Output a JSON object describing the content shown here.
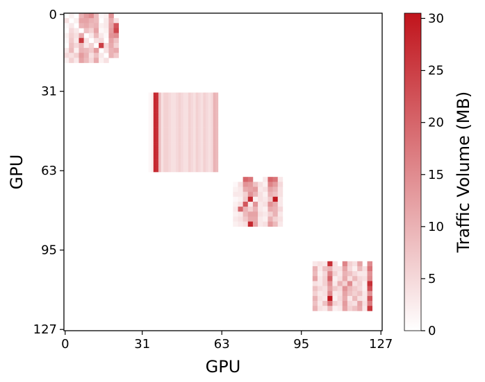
{
  "chart_data": {
    "type": "heatmap",
    "title": "",
    "xlabel": "GPU",
    "ylabel": "GPU",
    "x_ticks": [
      0,
      31,
      63,
      95,
      127
    ],
    "y_ticks": [
      0,
      31,
      63,
      95,
      127
    ],
    "x_range": [
      0,
      127
    ],
    "y_range": [
      0,
      127
    ],
    "colorbar": {
      "label": "Traffic Volume (MB)",
      "range": [
        0,
        30.5
      ],
      "ticks": [
        0,
        5,
        10,
        15,
        20,
        25,
        30
      ],
      "color_low": "#ffffff",
      "color_high": "#c0141c"
    },
    "grid": false,
    "background_value": 0,
    "blocks": [
      {
        "rows": [
          0,
          31
        ],
        "cols": [
          0,
          31
        ],
        "cell_size": 2,
        "pattern": "mixed",
        "values": [
          [
            0,
            2,
            0,
            10,
            13,
            15,
            9,
            1,
            2,
            14,
            0,
            0,
            0,
            0,
            0,
            0
          ],
          [
            4,
            0,
            2,
            12,
            12,
            10,
            9,
            0,
            3,
            11,
            4,
            0,
            0,
            0,
            0,
            0
          ],
          [
            1,
            3,
            0,
            10,
            11,
            9,
            10,
            2,
            3,
            12,
            22,
            0,
            0,
            0,
            0,
            0
          ],
          [
            0,
            5,
            3,
            0,
            8,
            6,
            12,
            1,
            2,
            13,
            24,
            0,
            0,
            0,
            0,
            0
          ],
          [
            2,
            6,
            4,
            11,
            0,
            3,
            9,
            3,
            1,
            14,
            15,
            0,
            0,
            0,
            0,
            0
          ],
          [
            1,
            7,
            3,
            26,
            4,
            0,
            4,
            5,
            0,
            12,
            8,
            0,
            0,
            0,
            0,
            0
          ],
          [
            0,
            8,
            5,
            9,
            3,
            6,
            0,
            25,
            5,
            11,
            6,
            0,
            0,
            0,
            0,
            0
          ],
          [
            3,
            9,
            2,
            10,
            9,
            7,
            13,
            0,
            4,
            10,
            11,
            0,
            0,
            0,
            0,
            0
          ],
          [
            5,
            4,
            6,
            13,
            10,
            4,
            8,
            3,
            0,
            10,
            7,
            0,
            0,
            0,
            0,
            0
          ],
          [
            2,
            6,
            3,
            12,
            9,
            5,
            11,
            2,
            4,
            0,
            0,
            0,
            0,
            0,
            0,
            0
          ],
          [
            0,
            0,
            0,
            0,
            0,
            0,
            0,
            0,
            0,
            0,
            0,
            0,
            0,
            0,
            0,
            0
          ],
          [
            0,
            0,
            0,
            0,
            0,
            0,
            0,
            0,
            0,
            0,
            0,
            0,
            0,
            0,
            0,
            0
          ],
          [
            0,
            0,
            0,
            0,
            0,
            0,
            0,
            0,
            0,
            0,
            0,
            0,
            0,
            0,
            0,
            0
          ],
          [
            0,
            0,
            0,
            0,
            0,
            0,
            0,
            0,
            0,
            0,
            0,
            0,
            0,
            0,
            0,
            0
          ],
          [
            0,
            0,
            0,
            0,
            0,
            0,
            0,
            0,
            0,
            0,
            0,
            0,
            0,
            0,
            0,
            0
          ],
          [
            0,
            0,
            0,
            0,
            0,
            0,
            0,
            0,
            0,
            0,
            0,
            0,
            0,
            0,
            0,
            0
          ]
        ]
      },
      {
        "rows": [
          32,
          63
        ],
        "cols": [
          32,
          63
        ],
        "pattern": "column-stripes",
        "column_values": [
          0,
          0,
          1,
          2,
          28,
          27,
          9,
          4,
          6,
          6,
          5,
          4,
          4,
          5,
          6,
          5,
          4,
          4,
          6,
          5,
          4,
          6,
          5,
          4,
          6,
          5,
          4,
          5,
          10,
          9,
          0,
          0
        ],
        "active_columns": [
          34,
          61
        ]
      },
      {
        "rows": [
          64,
          95
        ],
        "cols": [
          64,
          95
        ],
        "cell_size": 2,
        "pattern": "mixed",
        "values": [
          [
            0,
            0,
            0,
            0,
            0,
            0,
            0,
            0,
            0,
            0,
            0,
            0,
            0,
            0,
            0,
            0
          ],
          [
            0,
            0,
            0,
            0,
            20,
            18,
            0,
            0,
            3,
            20,
            18,
            3,
            0,
            0,
            0,
            0
          ],
          [
            0,
            0,
            1,
            4,
            14,
            13,
            8,
            4,
            2,
            16,
            13,
            5,
            0,
            0,
            0,
            0
          ],
          [
            0,
            0,
            2,
            3,
            11,
            12,
            13,
            3,
            4,
            12,
            10,
            4,
            0,
            0,
            0,
            0
          ],
          [
            0,
            0,
            3,
            3,
            6,
            14,
            10,
            4,
            2,
            10,
            8,
            4,
            0,
            0,
            0,
            0
          ],
          [
            0,
            0,
            1,
            2,
            7,
            28,
            2,
            4,
            3,
            7,
            30,
            3,
            0,
            0,
            0,
            0
          ],
          [
            0,
            0,
            2,
            4,
            22,
            3,
            14,
            3,
            4,
            14,
            11,
            3,
            0,
            0,
            0,
            0
          ],
          [
            0,
            0,
            3,
            20,
            10,
            6,
            10,
            3,
            2,
            11,
            10,
            5,
            0,
            0,
            0,
            0
          ],
          [
            0,
            0,
            2,
            3,
            9,
            12,
            12,
            4,
            3,
            6,
            10,
            3,
            0,
            0,
            0,
            0
          ],
          [
            0,
            0,
            3,
            4,
            7,
            11,
            11,
            3,
            2,
            10,
            6,
            4,
            0,
            0,
            0,
            0
          ],
          [
            0,
            0,
            2,
            3,
            4,
            28,
            12,
            3,
            4,
            13,
            9,
            3,
            0,
            0,
            0,
            0
          ],
          [
            0,
            0,
            0,
            0,
            0,
            0,
            0,
            0,
            0,
            0,
            0,
            0,
            0,
            0,
            0,
            0
          ],
          [
            0,
            0,
            0,
            0,
            0,
            0,
            0,
            0,
            0,
            0,
            0,
            0,
            0,
            0,
            0,
            0
          ],
          [
            0,
            0,
            0,
            0,
            0,
            0,
            0,
            0,
            0,
            0,
            0,
            0,
            0,
            0,
            0,
            0
          ],
          [
            0,
            0,
            0,
            0,
            0,
            0,
            0,
            0,
            0,
            0,
            0,
            0,
            0,
            0,
            0,
            0
          ],
          [
            0,
            0,
            0,
            0,
            0,
            0,
            0,
            0,
            0,
            0,
            0,
            0,
            0,
            0,
            0,
            0
          ]
        ]
      },
      {
        "rows": [
          96,
          127
        ],
        "cols": [
          96,
          127
        ],
        "cell_size": 2,
        "pattern": "mixed",
        "values": [
          [
            0,
            0,
            0,
            0,
            0,
            0,
            0,
            0,
            0,
            0,
            0,
            0,
            0,
            0,
            0,
            0
          ],
          [
            0,
            0,
            0,
            0,
            0,
            0,
            0,
            0,
            0,
            0,
            0,
            0,
            0,
            0,
            0,
            0
          ],
          [
            0,
            0,
            3,
            4,
            3,
            27,
            4,
            0,
            16,
            6,
            4,
            12,
            0,
            15,
            0,
            0
          ],
          [
            0,
            0,
            10,
            3,
            8,
            10,
            4,
            4,
            12,
            5,
            2,
            9,
            4,
            18,
            0,
            0
          ],
          [
            0,
            0,
            9,
            2,
            5,
            16,
            6,
            3,
            10,
            8,
            5,
            3,
            3,
            14,
            0,
            0
          ],
          [
            0,
            0,
            12,
            3,
            6,
            20,
            2,
            4,
            11,
            4,
            9,
            5,
            4,
            15,
            0,
            0
          ],
          [
            0,
            0,
            4,
            3,
            6,
            14,
            3,
            10,
            6,
            15,
            4,
            6,
            2,
            27,
            0,
            0
          ],
          [
            0,
            0,
            8,
            5,
            4,
            12,
            7,
            5,
            14,
            9,
            7,
            5,
            2,
            23,
            0,
            0
          ],
          [
            0,
            0,
            6,
            3,
            4,
            15,
            3,
            4,
            12,
            8,
            6,
            8,
            3,
            14,
            0,
            0
          ],
          [
            0,
            0,
            10,
            4,
            3,
            30,
            2,
            5,
            11,
            3,
            9,
            4,
            3,
            22,
            0,
            0
          ],
          [
            0,
            0,
            8,
            3,
            8,
            18,
            6,
            4,
            13,
            5,
            4,
            12,
            4,
            17,
            0,
            0
          ],
          [
            0,
            0,
            10,
            4,
            3,
            9,
            2,
            3,
            12,
            6,
            8,
            11,
            3,
            26,
            0,
            0
          ],
          [
            0,
            0,
            0,
            0,
            0,
            0,
            0,
            0,
            0,
            0,
            0,
            0,
            0,
            0,
            0,
            0
          ],
          [
            0,
            0,
            0,
            0,
            0,
            0,
            0,
            0,
            0,
            0,
            0,
            0,
            0,
            0,
            0,
            0
          ],
          [
            0,
            0,
            0,
            0,
            0,
            0,
            0,
            0,
            0,
            0,
            0,
            0,
            0,
            0,
            0,
            0
          ],
          [
            0,
            0,
            0,
            0,
            0,
            0,
            0,
            0,
            0,
            0,
            0,
            0,
            0,
            0,
            0,
            0
          ]
        ]
      }
    ]
  }
}
